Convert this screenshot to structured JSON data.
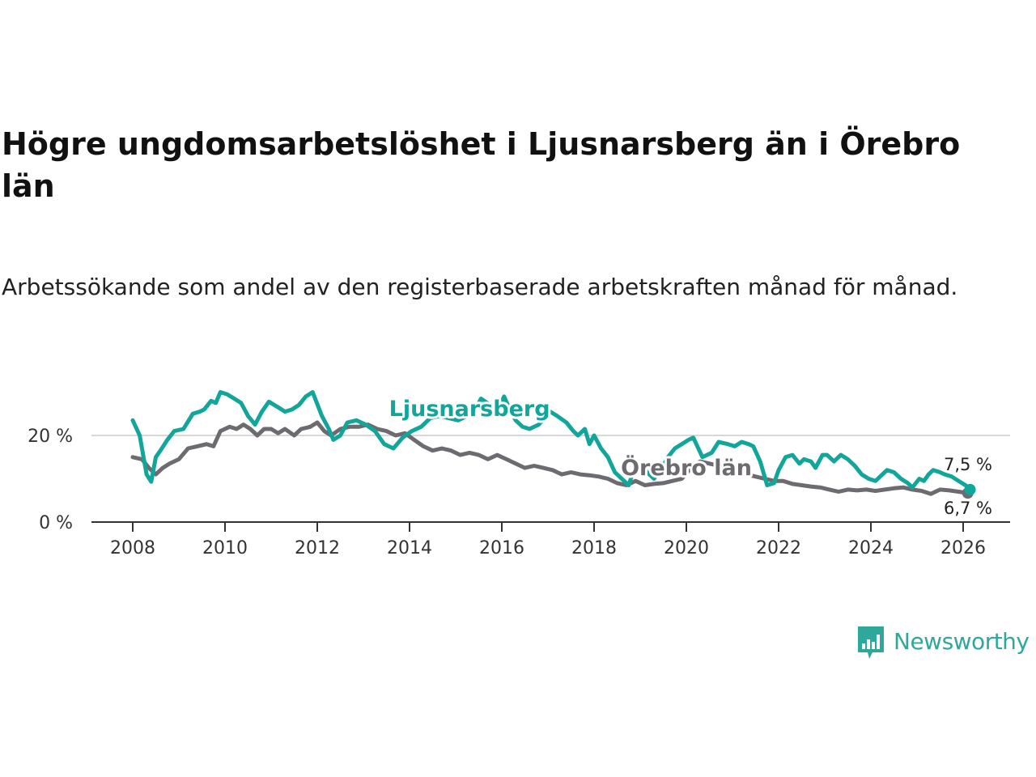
{
  "title": "Högre ungdomsarbetslöshet i Ljusnarsberg än i Örebro län",
  "subtitle": "Arbetssökande som andel av den registerbaserade arbetskraften månad för månad.",
  "brand": {
    "name": "Newsworthy",
    "color": "#2ea89a",
    "icon": "bar-chart-speech-bubble-icon"
  },
  "colors": {
    "ljusnarsberg": "#12a599",
    "orebro": "#6e6b70",
    "grid": "#d8d8d8",
    "axis": "#333333"
  },
  "chart_data": {
    "type": "line",
    "title": "Högre ungdomsarbetslöshet i Ljusnarsberg än i Örebro län",
    "xlabel": "",
    "ylabel": "",
    "xlim": [
      2007.2,
      2027.0
    ],
    "ylim": [
      0,
      30
    ],
    "x_ticks": [
      2008,
      2010,
      2012,
      2014,
      2016,
      2018,
      2020,
      2022,
      2024,
      2026
    ],
    "x_tick_labels": [
      "2008",
      "2010",
      "2012",
      "2014",
      "2016",
      "2018",
      "2020",
      "2022",
      "2024",
      "2026"
    ],
    "y_ticks": [
      0,
      20
    ],
    "y_tick_labels": [
      "0 %",
      "20 %"
    ],
    "grid": "horizontal",
    "series": [
      {
        "name": "Ljusnarsberg",
        "label": "Ljusnarsberg",
        "label_x": 2015.3,
        "label_y": 24.5,
        "color": "#12a599",
        "end_label": "7,5 %",
        "x": [
          2008.0,
          2008.15,
          2008.3,
          2008.4,
          2008.5,
          2008.6,
          2008.75,
          2008.9,
          2009.1,
          2009.3,
          2009.45,
          2009.55,
          2009.7,
          2009.8,
          2009.9,
          2010.05,
          2010.2,
          2010.35,
          2010.5,
          2010.65,
          2010.8,
          2010.95,
          2011.15,
          2011.3,
          2011.45,
          2011.6,
          2011.75,
          2011.9,
          2012.1,
          2012.25,
          2012.35,
          2012.5,
          2012.65,
          2012.85,
          2013.05,
          2013.25,
          2013.45,
          2013.65,
          2013.85,
          2014.05,
          2014.25,
          2014.45,
          2014.65,
          2014.85,
          2015.05,
          2015.25,
          2015.4,
          2015.55,
          2015.75,
          2015.9,
          2016.05,
          2016.15,
          2016.3,
          2016.45,
          2016.6,
          2016.8,
          2017.05,
          2017.2,
          2017.4,
          2017.55,
          2017.65,
          2017.8,
          2017.9,
          2018.0,
          2018.15,
          2018.3,
          2018.45,
          2018.6,
          2018.75,
          2018.9,
          2019.1,
          2019.3,
          2019.5,
          2019.6,
          2019.75,
          2019.9,
          2020.05,
          2020.15,
          2020.35,
          2020.55,
          2020.7,
          2020.9,
          2021.05,
          2021.2,
          2021.35,
          2021.45,
          2021.6,
          2021.75,
          2021.9,
          2022.0,
          2022.15,
          2022.3,
          2022.45,
          2022.55,
          2022.7,
          2022.8,
          2022.95,
          2023.05,
          2023.2,
          2023.35,
          2023.5,
          2023.65,
          2023.8,
          2023.95,
          2024.1,
          2024.2,
          2024.35,
          2024.5,
          2024.65,
          2024.8,
          2024.9,
          2025.05,
          2025.15,
          2025.25,
          2025.35,
          2025.5,
          2025.6,
          2025.75,
          2025.9,
          2026.05,
          2026.15
        ],
        "values": [
          23.5,
          20,
          11,
          9.3,
          15,
          16.5,
          19,
          21,
          21.5,
          25,
          25.5,
          26,
          28,
          27.5,
          30,
          29.5,
          28.5,
          27.5,
          24.5,
          22.5,
          25.5,
          27.8,
          26.5,
          25.5,
          26,
          27,
          29,
          30,
          24.5,
          21.5,
          19,
          20,
          23,
          23.5,
          22.5,
          21,
          18,
          17,
          19.5,
          21,
          22,
          24,
          24.5,
          24,
          23.5,
          24.5,
          25.5,
          28.5,
          27,
          25.5,
          29,
          26.5,
          23.5,
          22,
          21.5,
          22.5,
          25.5,
          24.5,
          23,
          21,
          20,
          21.5,
          18,
          20,
          17,
          15,
          11.5,
          10,
          8.5,
          13.5,
          12,
          10,
          13,
          15,
          17,
          18,
          19,
          19.5,
          15,
          16,
          18.5,
          18,
          17.5,
          18.5,
          18,
          17.5,
          14,
          8.5,
          9,
          12,
          15,
          15.5,
          13.5,
          14.5,
          14,
          12.5,
          15.5,
          15.5,
          14,
          15.5,
          14.5,
          13,
          11,
          10,
          9.5,
          10.5,
          12,
          11.5,
          10,
          9,
          8,
          10,
          9.5,
          11,
          12,
          11.5,
          11,
          10.5,
          9.5,
          8.5,
          7.5
        ],
        "x_visible_gap_note": ""
      },
      {
        "name": "Örebro län",
        "label": "Örebro län",
        "label_x": 2020.0,
        "label_y": 10.8,
        "color": "#6e6b70",
        "end_label": "6,7 %",
        "x": [
          2008.0,
          2008.2,
          2008.35,
          2008.5,
          2008.65,
          2008.8,
          2009.0,
          2009.2,
          2009.4,
          2009.6,
          2009.75,
          2009.9,
          2010.1,
          2010.25,
          2010.4,
          2010.55,
          2010.7,
          2010.85,
          2011.0,
          2011.15,
          2011.3,
          2011.5,
          2011.65,
          2011.85,
          2012.0,
          2012.15,
          2012.3,
          2012.5,
          2012.7,
          2012.9,
          2013.1,
          2013.3,
          2013.5,
          2013.7,
          2013.9,
          2014.1,
          2014.3,
          2014.5,
          2014.7,
          2014.9,
          2015.1,
          2015.3,
          2015.5,
          2015.7,
          2015.9,
          2016.1,
          2016.3,
          2016.5,
          2016.7,
          2016.9,
          2017.1,
          2017.3,
          2017.5,
          2017.7,
          2017.9,
          2018.1,
          2018.3,
          2018.5,
          2018.7,
          2018.9,
          2019.1,
          2019.3,
          2019.5,
          2019.7,
          2019.9,
          2020.1,
          2020.3,
          2020.5,
          2020.7,
          2020.9,
          2021.1,
          2021.3,
          2021.5,
          2021.7,
          2021.9,
          2022.1,
          2022.3,
          2022.5,
          2022.7,
          2022.9,
          2023.1,
          2023.3,
          2023.5,
          2023.7,
          2023.9,
          2024.1,
          2024.3,
          2024.5,
          2024.7,
          2024.9,
          2025.1,
          2025.3,
          2025.5,
          2025.7,
          2025.9,
          2026.1
        ],
        "values": [
          15,
          14.5,
          12.5,
          11,
          12.5,
          13.5,
          14.5,
          17,
          17.5,
          18,
          17.5,
          21,
          22,
          21.5,
          22.5,
          21.5,
          20,
          21.5,
          21.5,
          20.5,
          21.5,
          20,
          21.5,
          22,
          23,
          21,
          20,
          21.5,
          22,
          22,
          22.5,
          21.5,
          21,
          20,
          20.5,
          19,
          17.5,
          16.5,
          17,
          16.5,
          15.5,
          16,
          15.5,
          14.5,
          15.5,
          14.5,
          13.5,
          12.5,
          13,
          12.5,
          12,
          11,
          11.5,
          11,
          10.8,
          10.5,
          10,
          9,
          8.5,
          9.5,
          8.5,
          8.8,
          9,
          9.5,
          10,
          12.5,
          14,
          13.5,
          13,
          12,
          11.5,
          11,
          10.5,
          10,
          9.5,
          9.5,
          8.8,
          8.5,
          8.2,
          8,
          7.5,
          7,
          7.5,
          7.3,
          7.5,
          7.2,
          7.5,
          7.8,
          8,
          7.5,
          7.2,
          6.5,
          7.5,
          7.3,
          7,
          6.7
        ]
      }
    ]
  }
}
